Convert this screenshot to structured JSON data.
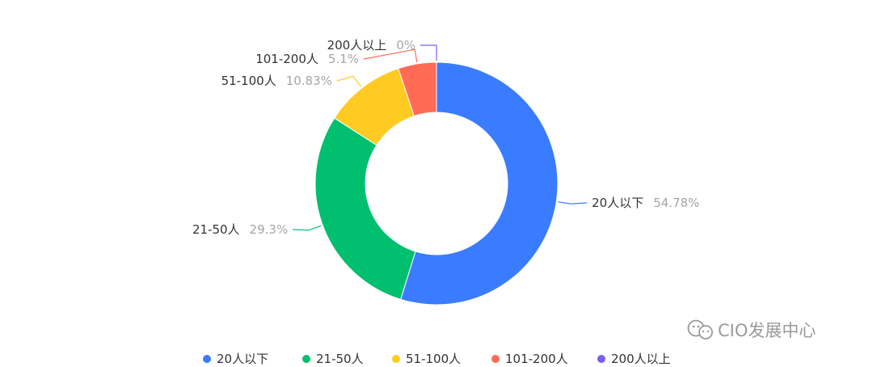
{
  "chart_data": {
    "type": "pie",
    "variant": "donut",
    "legend_position": "bottom",
    "slices": [
      {
        "name": "20人以下",
        "value": 54.78,
        "value_label": "54.78%",
        "color": "#3a7cff"
      },
      {
        "name": "21-50人",
        "value": 29.3,
        "value_label": "29.3%",
        "color": "#00bf6f"
      },
      {
        "name": "51-100人",
        "value": 10.83,
        "value_label": "10.83%",
        "color": "#ffcb22"
      },
      {
        "name": "101-200人",
        "value": 5.1,
        "value_label": "5.1%",
        "color": "#ff6b55"
      },
      {
        "name": "200人以上",
        "value": 0,
        "value_label": "0%",
        "color": "#7e5cef"
      }
    ]
  },
  "watermark": {
    "text": "CIO发展中心",
    "icon": "wechat-icon"
  }
}
